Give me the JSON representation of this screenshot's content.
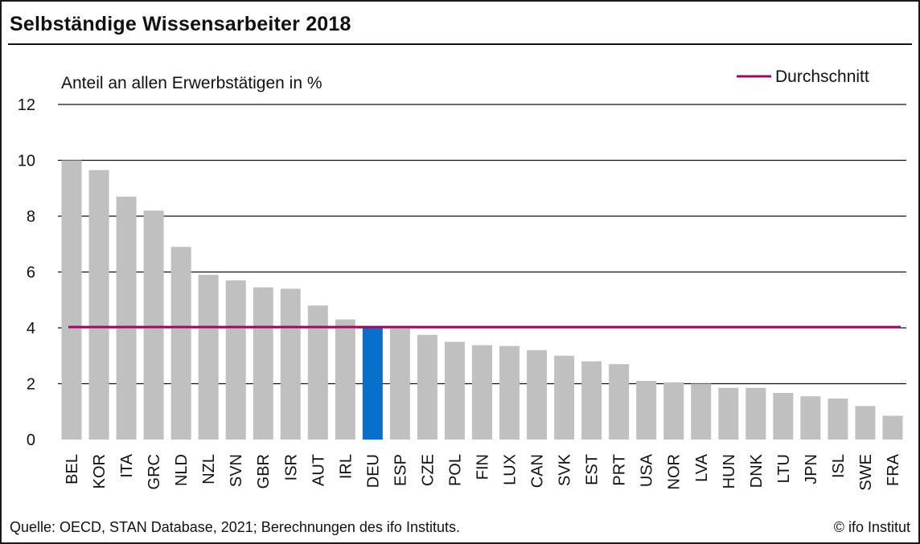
{
  "header": {
    "title": "Selbständige Wissensarbeiter 2018"
  },
  "footer": {
    "source": "Quelle: OECD, STAN Database, 2021; Berechnungen des ifo Instituts.",
    "copyright": "© ifo Institut"
  },
  "colors": {
    "bar": "#c0c0c0",
    "highlight": "#0a6fcc",
    "average_line": "#9b0a5e",
    "gridline": "#111111"
  },
  "chart_data": {
    "type": "bar",
    "title": "Selbständige Wissensarbeiter 2018",
    "ylabel": "Anteil an allen Erwerbstätigen in %",
    "xlabel": "",
    "ylim": [
      0,
      12
    ],
    "yticks": [
      0,
      2,
      4,
      6,
      8,
      10,
      12
    ],
    "grid": true,
    "legend_position": "top-right",
    "categories": [
      "BEL",
      "KOR",
      "ITA",
      "GRC",
      "NLD",
      "NZL",
      "SVN",
      "GBR",
      "ISR",
      "AUT",
      "IRL",
      "DEU",
      "ESP",
      "CZE",
      "POL",
      "FIN",
      "LUX",
      "CAN",
      "SVK",
      "EST",
      "PRT",
      "USA",
      "NOR",
      "LVA",
      "HUN",
      "DNK",
      "LTU",
      "JPN",
      "ISL",
      "SWE",
      "FRA"
    ],
    "values": [
      10.0,
      9.65,
      8.7,
      8.2,
      6.9,
      5.9,
      5.7,
      5.45,
      5.4,
      4.8,
      4.3,
      4.05,
      4.05,
      3.75,
      3.5,
      3.38,
      3.35,
      3.2,
      3.0,
      2.8,
      2.7,
      2.1,
      2.05,
      2.0,
      1.85,
      1.85,
      1.67,
      1.55,
      1.47,
      1.2,
      0.85
    ],
    "highlight": "DEU",
    "average": {
      "name": "Durchschnitt",
      "value": 4.03
    }
  }
}
